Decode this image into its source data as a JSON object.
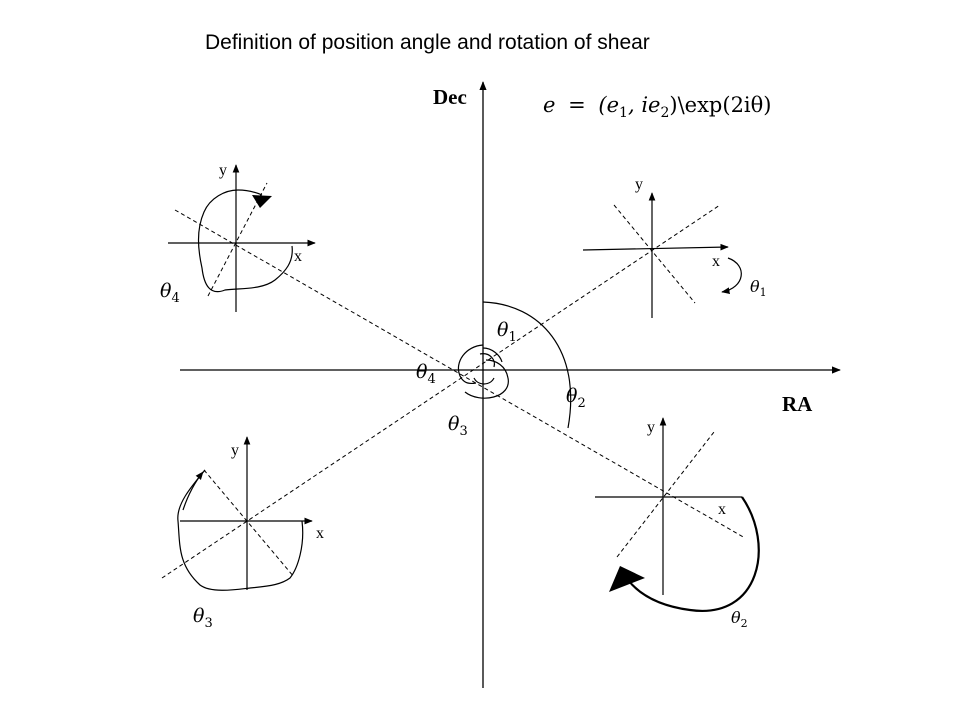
{
  "title": "Definition of position angle and rotation of shear",
  "axes": {
    "vertical": "Dec",
    "horizontal": "RA"
  },
  "formula": {
    "lhs": "e",
    "eq": "=",
    "body": "(e",
    "sub1": "1",
    "mid": ", ie",
    "sub2": "2",
    "rest": ")\\exp(2iθ)"
  },
  "angle_symbol": "θ",
  "quadrant_axis": {
    "x": "x",
    "y": "y"
  },
  "angles": {
    "center_1": "1",
    "center_2": "2",
    "center_3": "3",
    "center_4": "4",
    "q1": "1",
    "q2": "2",
    "q3": "3",
    "q4": "4"
  }
}
